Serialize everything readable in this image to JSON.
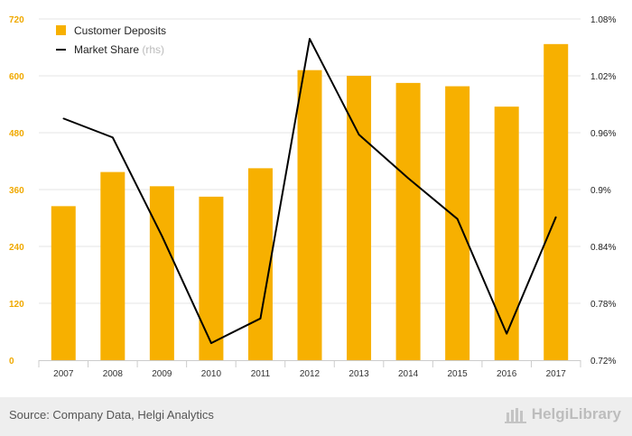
{
  "chart_data": {
    "type": "bar",
    "categories": [
      "2007",
      "2008",
      "2009",
      "2010",
      "2011",
      "2012",
      "2013",
      "2014",
      "2015",
      "2016",
      "2017"
    ],
    "series": [
      {
        "name": "Customer Deposits",
        "type": "bar",
        "axis": "left",
        "color": "#f7b000",
        "values": [
          325,
          397,
          367,
          345,
          405,
          612,
          600,
          585,
          578,
          535,
          667
        ]
      },
      {
        "name": "Market Share",
        "name_suffix": "(rhs)",
        "type": "line",
        "axis": "right",
        "color": "#000000",
        "values": [
          0.975,
          0.955,
          0.851,
          0.738,
          0.764,
          1.059,
          0.958,
          0.912,
          0.869,
          0.748,
          0.871
        ]
      }
    ],
    "ylim_left": [
      0,
      720
    ],
    "yticks_left": [
      "0",
      "120",
      "240",
      "360",
      "480",
      "600",
      "720"
    ],
    "ylim_right": [
      0.72,
      1.08
    ],
    "yticks_right": [
      "0.72%",
      "0.78%",
      "0.84%",
      "0.9%",
      "0.96%",
      "1.02%",
      "1.08%"
    ],
    "grid": true,
    "legend_position": "top-left"
  },
  "footer": {
    "source": "Source: Company Data, Helgi Analytics",
    "brand": "HelgiLibrary"
  }
}
